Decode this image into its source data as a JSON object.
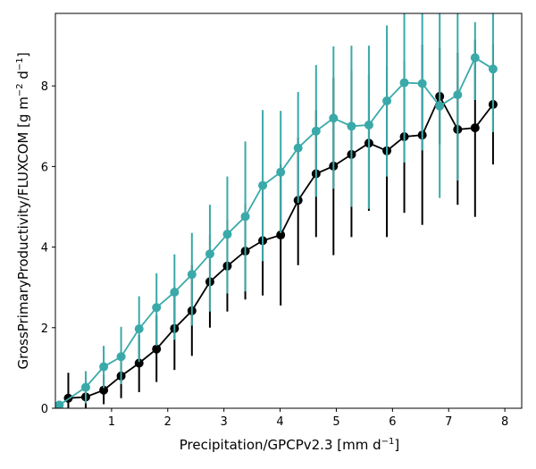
{
  "chart_data": {
    "type": "line",
    "xlabel": "Precipitation/GPCPv2.3 [mm d",
    "xlabel_sup": "−1",
    "xlabel_end": "]",
    "ylabel": "GrossPrimaryProductivity/FLUXCOM [g m",
    "ylabel_sup1": "−2",
    "ylabel_mid": " d",
    "ylabel_sup2": "−1",
    "ylabel_end": "]",
    "xlim": [
      0.0,
      8.3
    ],
    "ylim": [
      0,
      9.8
    ],
    "xticks": [
      1,
      2,
      3,
      4,
      5,
      6,
      7,
      8
    ],
    "yticks": [
      0,
      2,
      4,
      6,
      8
    ],
    "grid": false,
    "x": [
      0.07,
      0.23,
      0.54,
      0.86,
      1.17,
      1.49,
      1.8,
      2.12,
      2.43,
      2.75,
      3.06,
      3.38,
      3.69,
      4.01,
      4.32,
      4.64,
      4.95,
      5.27,
      5.58,
      5.9,
      6.21,
      6.53,
      6.84,
      7.16,
      7.47,
      7.79,
      8.1
    ],
    "series": [
      {
        "color": "#000000",
        "values": [
          null,
          0.25,
          0.28,
          0.45,
          0.8,
          1.12,
          1.47,
          1.98,
          2.42,
          3.14,
          3.53,
          3.9,
          4.16,
          4.3,
          5.16,
          5.82,
          6.01,
          6.3,
          6.58,
          6.39,
          6.74,
          6.78,
          7.74,
          6.92,
          6.96,
          7.54,
          null
        ],
        "err_low": [
          null,
          0.0,
          0.0,
          0.1,
          0.25,
          0.4,
          0.65,
          0.95,
          1.3,
          2.0,
          2.4,
          2.7,
          2.8,
          2.55,
          3.55,
          4.25,
          3.8,
          4.25,
          4.9,
          4.25,
          4.85,
          4.55,
          6.55,
          5.05,
          4.75,
          6.05,
          null
        ],
        "err_high": [
          null,
          0.88,
          0.6,
          0.82,
          1.35,
          1.82,
          2.3,
          3.0,
          3.55,
          4.3,
          4.68,
          5.08,
          5.52,
          6.05,
          6.72,
          7.4,
          8.2,
          8.38,
          8.28,
          8.5,
          8.62,
          9.02,
          8.95,
          8.82,
          9.15,
          9.05,
          null
        ]
      },
      {
        "color": "#3aa9a9",
        "values": [
          0.08,
          null,
          0.52,
          1.03,
          1.28,
          1.97,
          2.5,
          2.88,
          3.32,
          3.83,
          4.32,
          4.76,
          5.53,
          5.86,
          6.46,
          6.88,
          7.2,
          7.0,
          7.03,
          7.63,
          8.08,
          8.06,
          7.5,
          7.78,
          8.7,
          8.42,
          null
        ],
        "err_low": [
          0.0,
          null,
          0.12,
          0.5,
          0.6,
          1.15,
          1.55,
          1.7,
          2.05,
          2.4,
          2.85,
          2.9,
          3.65,
          4.35,
          5.1,
          5.25,
          5.45,
          5.0,
          4.95,
          5.75,
          6.1,
          6.4,
          5.22,
          5.65,
          7.65,
          6.85,
          null
        ],
        "err_high": [
          0.12,
          null,
          0.92,
          1.55,
          2.02,
          2.78,
          3.35,
          3.82,
          4.35,
          5.05,
          5.75,
          6.62,
          7.4,
          7.38,
          7.85,
          8.52,
          8.98,
          9.0,
          9.0,
          9.5,
          9.8,
          9.8,
          9.8,
          9.8,
          9.58,
          9.8,
          null
        ]
      }
    ]
  }
}
